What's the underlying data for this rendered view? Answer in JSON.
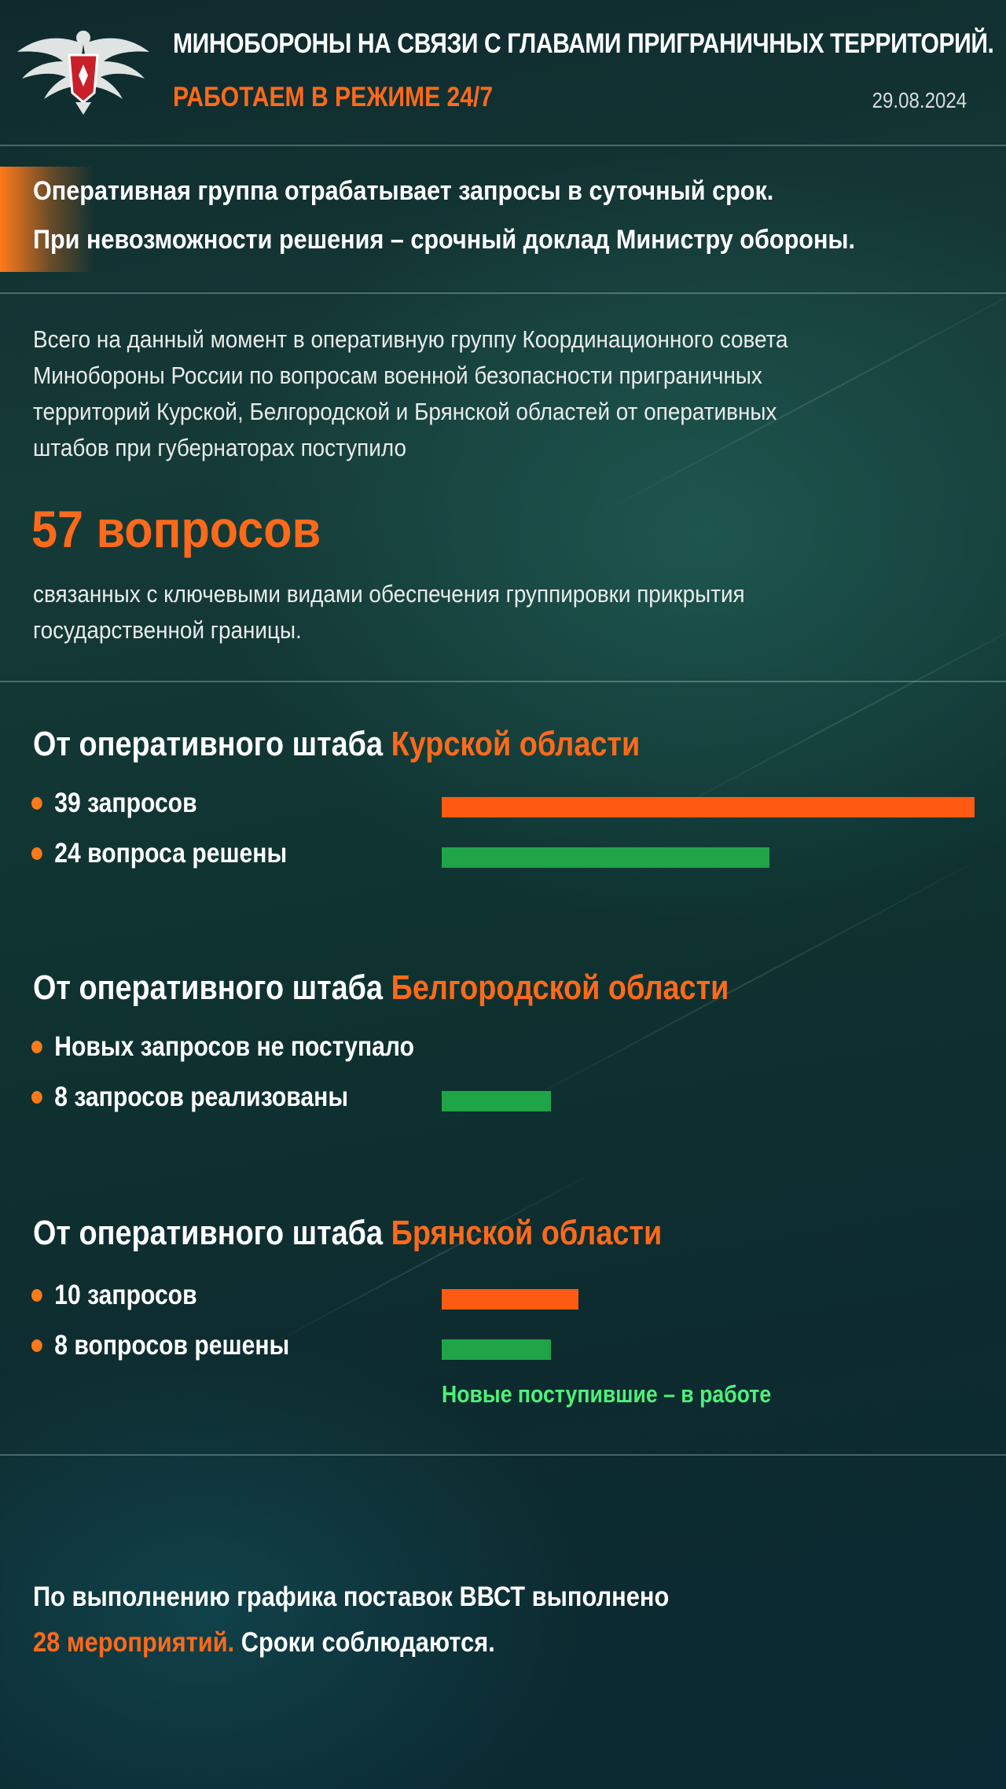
{
  "header": {
    "title": "МИНОБОРОНЫ НА СВЯЗИ С ГЛАВАМИ ПРИГРАНИЧНЫХ ТЕРРИТОРИЙ.",
    "subtitle": "РАБОТАЕМ В РЕЖИМЕ 24/7",
    "date": "29.08.2024",
    "emblem_icon": "eagle-emblem-icon"
  },
  "lead": {
    "line1": "Оперативная группа отрабатывает запросы в суточный срок.",
    "line2": "При невозможности решения – срочный доклад Министру обороны."
  },
  "summary": {
    "lines": [
      "Всего на данный момент в оперативную группу Координационного совета",
      "Минобороны России по вопросам военной безопасности приграничных",
      "территорий Курской, Белгородской и Брянской областей от оперативных",
      "штабов при губернаторах поступило"
    ],
    "big_number": "57 вопросов",
    "after_lines": [
      "связанных с ключевыми видами обеспечения группировки прикрытия",
      "государственной границы."
    ]
  },
  "colors": {
    "accent_orange": "#ff6a1a",
    "bar_orange": "#ff5a12",
    "bar_green": "#1fa447",
    "note_green": "#4ff07a"
  },
  "sections": [
    {
      "prefix": "От оперативного штаба ",
      "region": "Курской области",
      "items": [
        {
          "label": "39 запросов",
          "bar": "orange",
          "value": 39
        },
        {
          "label": "24 вопроса решены",
          "bar": "green",
          "value": 24
        }
      ]
    },
    {
      "prefix": "От оперативного штаба ",
      "region": "Белгородской области",
      "items": [
        {
          "label": "Новых запросов не поступало",
          "bar": "none",
          "value": 0
        },
        {
          "label": "8 запросов реализованы",
          "bar": "green",
          "value": 8
        }
      ]
    },
    {
      "prefix": "От оперативного штаба ",
      "region": "Брянской области",
      "items": [
        {
          "label": "10 запросов",
          "bar": "orange",
          "value": 10
        },
        {
          "label": "8 вопросов решены",
          "bar": "green",
          "value": 8
        }
      ],
      "note": "Новые поступившие – в работе"
    }
  ],
  "footer": {
    "line1": "По выполнению графика поставок ВВСТ выполнено",
    "highlight": "28 мероприятий.",
    "rest": " Сроки соблюдаются."
  }
}
